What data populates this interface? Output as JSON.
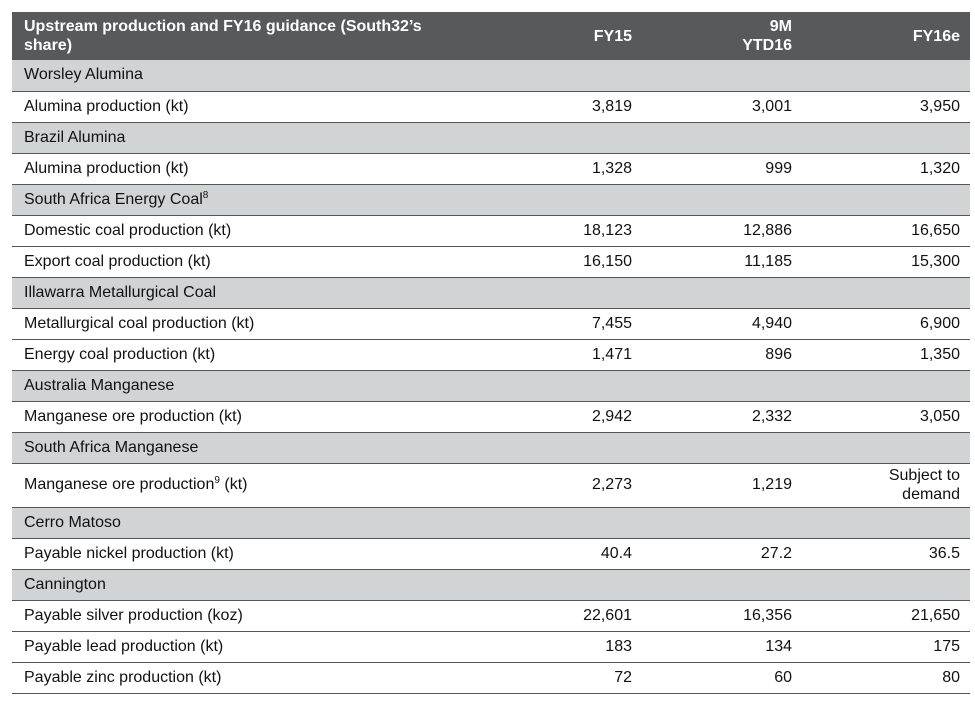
{
  "header": {
    "title": "Upstream production and FY16 guidance (South32’s share)",
    "col1": "FY15",
    "col2_line1": "9M",
    "col2_line2": "YTD16",
    "col3": "FY16e"
  },
  "sections": [
    {
      "name": "Worsley Alumina",
      "rows": [
        {
          "label": "Alumina production (kt)",
          "fy15": "3,819",
          "ytd16": "3,001",
          "fy16e": "3,950"
        }
      ]
    },
    {
      "name": "Brazil Alumina",
      "rows": [
        {
          "label": "Alumina production (kt)",
          "fy15": "1,328",
          "ytd16": "999",
          "fy16e": "1,320"
        }
      ]
    },
    {
      "name": "South Africa Energy Coal",
      "sup": "8",
      "rows": [
        {
          "label": "Domestic coal production (kt)",
          "fy15": "18,123",
          "ytd16": "12,886",
          "fy16e": "16,650"
        },
        {
          "label": "Export coal production (kt)",
          "fy15": "16,150",
          "ytd16": "11,185",
          "fy16e": "15,300"
        }
      ]
    },
    {
      "name": "Illawarra Metallurgical Coal",
      "rows": [
        {
          "label": "Metallurgical coal production (kt)",
          "fy15": "7,455",
          "ytd16": "4,940",
          "fy16e": "6,900"
        },
        {
          "label": "Energy coal production (kt)",
          "fy15": "1,471",
          "ytd16": "896",
          "fy16e": "1,350"
        }
      ]
    },
    {
      "name": "Australia Manganese",
      "rows": [
        {
          "label": "Manganese ore production (kt)",
          "fy15": "2,942",
          "ytd16": "2,332",
          "fy16e": "3,050"
        }
      ]
    },
    {
      "name": "South Africa Manganese",
      "rows": [
        {
          "label_pre": "Manganese ore production",
          "sup": "9",
          "label_post": " (kt)",
          "fy15": "2,273",
          "ytd16": "1,219",
          "fy16e_line1": "Subject to",
          "fy16e_line2": "demand"
        }
      ]
    },
    {
      "name": "Cerro Matoso",
      "rows": [
        {
          "label": "Payable nickel production (kt)",
          "fy15": "40.4",
          "ytd16": "27.2",
          "fy16e": "36.5"
        }
      ]
    },
    {
      "name": "Cannington",
      "rows": [
        {
          "label": "Payable silver production (koz)",
          "fy15": "22,601",
          "ytd16": "16,356",
          "fy16e": "21,650"
        },
        {
          "label": "Payable lead production (kt)",
          "fy15": "183",
          "ytd16": "134",
          "fy16e": "175"
        },
        {
          "label": "Payable zinc production (kt)",
          "fy15": "72",
          "ytd16": "60",
          "fy16e": "80"
        }
      ]
    }
  ]
}
